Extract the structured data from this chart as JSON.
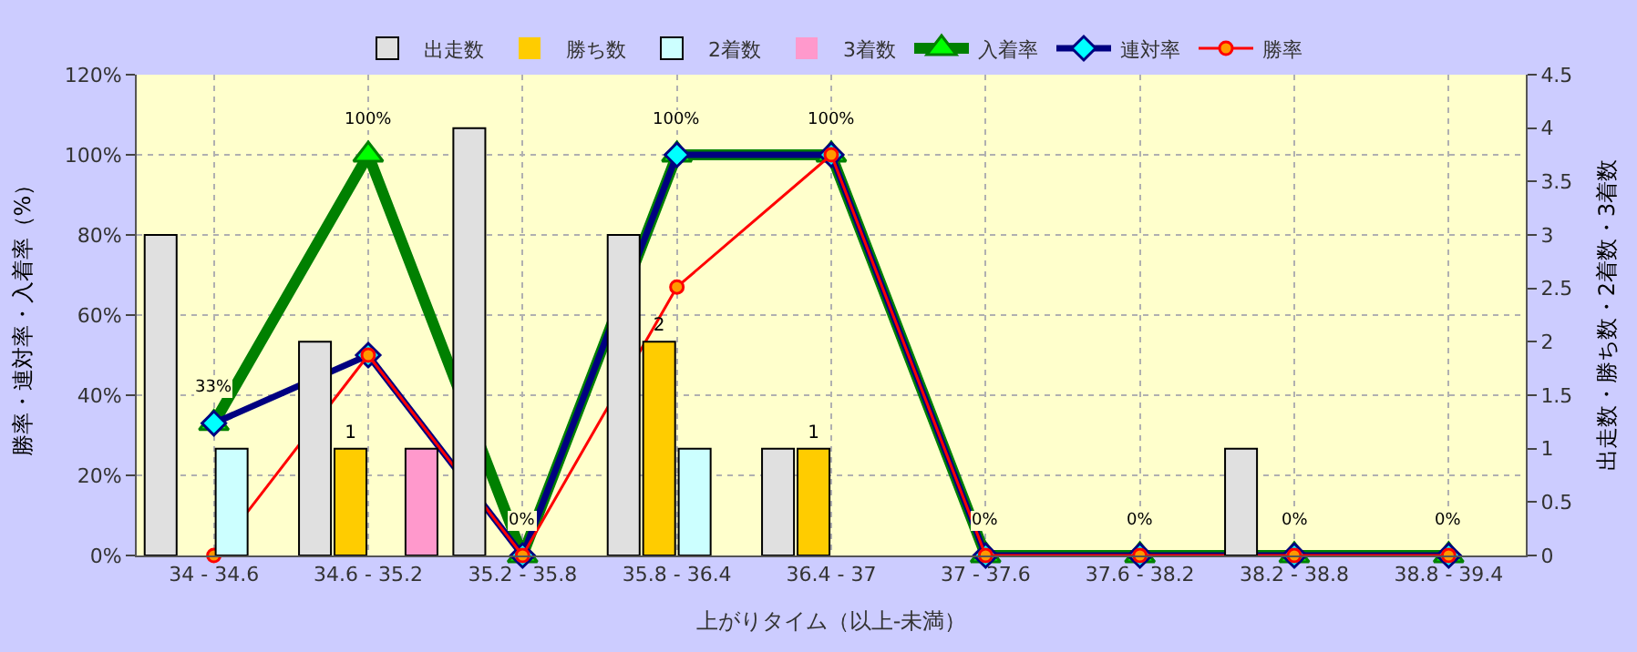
{
  "chart_data": {
    "type": "bar",
    "categories": [
      "34 - 34.6",
      "34.6 - 35.2",
      "35.2 - 35.8",
      "35.8 - 36.4",
      "36.4 - 37",
      "37 - 37.6",
      "37.6 - 38.2",
      "38.2 - 38.8",
      "38.8 - 39.4"
    ],
    "xlabel": "上がりタイム（以上-未満）",
    "ylabel": "勝率・連対率・入着率（%）",
    "y2label": "出走数・勝ち数・2着数・3着数",
    "series": [
      {
        "name": "出走数",
        "axis": "y2",
        "color": "#e0e0e0",
        "values": [
          3,
          2,
          4,
          3,
          1,
          0,
          0,
          1,
          0
        ]
      },
      {
        "name": "勝ち数",
        "axis": "y2",
        "color": "#ffcc00",
        "values": [
          0,
          1,
          0,
          2,
          1,
          0,
          0,
          0,
          0
        ],
        "value_labels": [
          null,
          "1",
          null,
          "2",
          "1",
          null,
          null,
          null,
          null
        ]
      },
      {
        "name": "2着数",
        "axis": "y2",
        "color": "#ccffff",
        "values": [
          1,
          0,
          0,
          1,
          0,
          0,
          0,
          0,
          0
        ]
      },
      {
        "name": "3着数",
        "axis": "y2",
        "color": "#ff99cc",
        "values": [
          0,
          1,
          0,
          0,
          0,
          0,
          0,
          0,
          0
        ]
      },
      {
        "name": "入着率",
        "type": "line",
        "marker": "triangle",
        "color": "#008000",
        "values": [
          33,
          100,
          0,
          100,
          100,
          0,
          0,
          0,
          0
        ],
        "value_labels": [
          "33%",
          "100%",
          "0%",
          "100%",
          "100%",
          "0%",
          "0%",
          "0%",
          "0%"
        ]
      },
      {
        "name": "連対率",
        "type": "line",
        "marker": "diamond",
        "color": "#000080",
        "values": [
          33,
          50,
          0,
          100,
          100,
          0,
          0,
          0,
          0
        ]
      },
      {
        "name": "勝率",
        "type": "line",
        "marker": "circle",
        "color": "#ff0000",
        "values": [
          0,
          50,
          0,
          67,
          100,
          0,
          0,
          0,
          0
        ]
      }
    ],
    "ylim": [
      0,
      120
    ],
    "yticks": [
      {
        "value": 0,
        "label": "0%"
      },
      {
        "value": 20,
        "label": "20%"
      },
      {
        "value": 40,
        "label": "40%"
      },
      {
        "value": 60,
        "label": "60%"
      },
      {
        "value": 80,
        "label": "80%"
      },
      {
        "value": 100,
        "label": "100%"
      },
      {
        "value": 120,
        "label": "120%"
      }
    ],
    "y2lim": [
      0,
      4.5
    ],
    "y2ticks": [
      0,
      0.5,
      1,
      1.5,
      2,
      2.5,
      3,
      3.5,
      4,
      4.5
    ],
    "grid": true,
    "legend": "top"
  }
}
